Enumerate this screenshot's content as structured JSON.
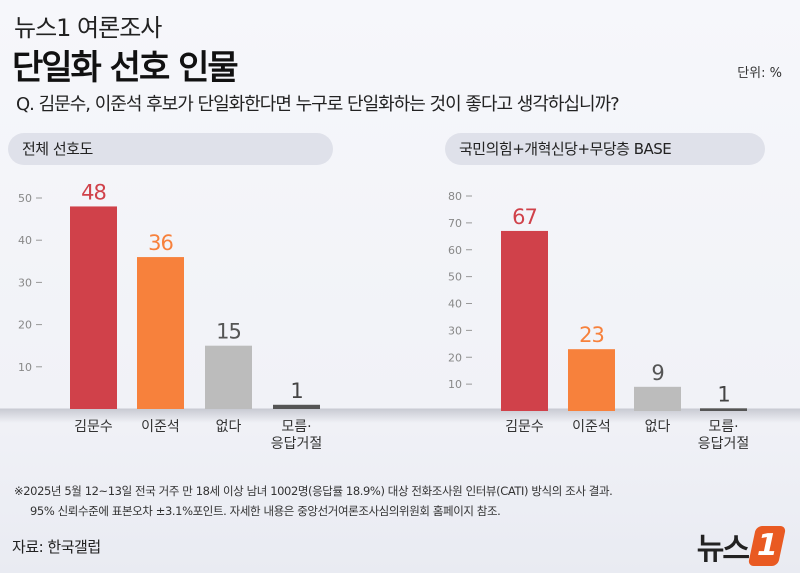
{
  "header": {
    "brand": "뉴스1 여론조사",
    "title": "단일화 선호 인물",
    "unit": "단위: %",
    "question": "Q. 김문수, 이준석 후보가 단일화한다면 누구로 단일화하는 것이 좋다고 생각하십니까?"
  },
  "chart_data": [
    {
      "type": "bar",
      "title": "전체 선호도",
      "categories": [
        "김문수",
        "이준석",
        "없다",
        "모름·\n응답거절"
      ],
      "values": [
        48,
        36,
        15,
        1
      ],
      "yticks": [
        10,
        20,
        30,
        40,
        50
      ],
      "ylim": [
        0,
        50
      ],
      "colors": [
        "#d0414a",
        "#f7813c",
        "#bcbcbc",
        "#555555"
      ]
    },
    {
      "type": "bar",
      "title": "국민의힘+개혁신당+무당층 BASE",
      "categories": [
        "김문수",
        "이준석",
        "없다",
        "모름·\n응답거절"
      ],
      "values": [
        67,
        23,
        9,
        1
      ],
      "yticks": [
        10,
        20,
        30,
        40,
        50,
        60,
        70,
        80
      ],
      "ylim": [
        0,
        80
      ],
      "colors": [
        "#d0414a",
        "#f7813c",
        "#bcbcbc",
        "#555555"
      ]
    }
  ],
  "footer": {
    "note1": "※2025년 5월 12~13일 전국 거주 만 18세 이상 남녀 1002명(응답률 18.9%) 대상 전화조사원 인터뷰(CATI) 방식의 조사 결과.",
    "note2": "95% 신뢰수준에 표본오차 ±3.1%포인트. 자세한 내용은 중앙선거여론조사심의위원회 홈페이지 참조.",
    "source": "자료: 한국갤럽",
    "logo": "뉴스1"
  }
}
